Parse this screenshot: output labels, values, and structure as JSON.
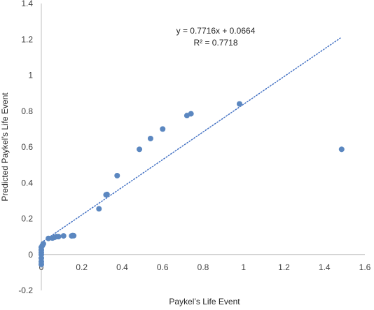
{
  "chart_data": {
    "type": "scatter",
    "title": "",
    "xlabel": "Paykel’s Life Event",
    "ylabel": "Predicted Paykel’s Life Event",
    "xlim": [
      0,
      1.6
    ],
    "ylim": [
      -0.2,
      1.4
    ],
    "x_ticks": [
      "0",
      "0.2",
      "0.4",
      "0.6",
      "0.8",
      "1",
      "1.2",
      "1.4",
      "1.6"
    ],
    "y_ticks": [
      "-0.2",
      "0",
      "0.2",
      "0.4",
      "0.6",
      "0.8",
      "1",
      "1.2",
      "1.4"
    ],
    "grid": false,
    "legend": "none",
    "marker_color": "#5b87c0",
    "trendline": {
      "type": "linear",
      "slope": 0.7716,
      "intercept": 0.0664,
      "x_range": [
        0,
        1.48
      ],
      "style": "dotted",
      "color": "#4472c4",
      "equation_text": "y = 0.7716x + 0.0664",
      "r2_text": "R² = 0.7718"
    },
    "series": [
      {
        "points": [
          {
            "x": 0.0,
            "y": -0.055
          },
          {
            "x": 0.0,
            "y": -0.04
          },
          {
            "x": 0.0,
            "y": -0.02
          },
          {
            "x": 0.0,
            "y": 0.0
          },
          {
            "x": 0.0,
            "y": 0.012
          },
          {
            "x": 0.0,
            "y": 0.025
          },
          {
            "x": 0.0,
            "y": 0.04
          },
          {
            "x": 0.005,
            "y": 0.05
          },
          {
            "x": 0.01,
            "y": 0.06
          },
          {
            "x": 0.035,
            "y": 0.09
          },
          {
            "x": 0.055,
            "y": 0.092
          },
          {
            "x": 0.065,
            "y": 0.096
          },
          {
            "x": 0.075,
            "y": 0.1
          },
          {
            "x": 0.085,
            "y": 0.1
          },
          {
            "x": 0.11,
            "y": 0.104
          },
          {
            "x": 0.15,
            "y": 0.104
          },
          {
            "x": 0.155,
            "y": 0.106
          },
          {
            "x": 0.16,
            "y": 0.105
          },
          {
            "x": 0.285,
            "y": 0.255
          },
          {
            "x": 0.32,
            "y": 0.333
          },
          {
            "x": 0.325,
            "y": 0.335
          },
          {
            "x": 0.375,
            "y": 0.44
          },
          {
            "x": 0.485,
            "y": 0.587
          },
          {
            "x": 0.54,
            "y": 0.647
          },
          {
            "x": 0.6,
            "y": 0.7
          },
          {
            "x": 0.72,
            "y": 0.775
          },
          {
            "x": 0.74,
            "y": 0.785
          },
          {
            "x": 0.98,
            "y": 0.84
          },
          {
            "x": 1.485,
            "y": 0.587
          }
        ]
      }
    ]
  }
}
